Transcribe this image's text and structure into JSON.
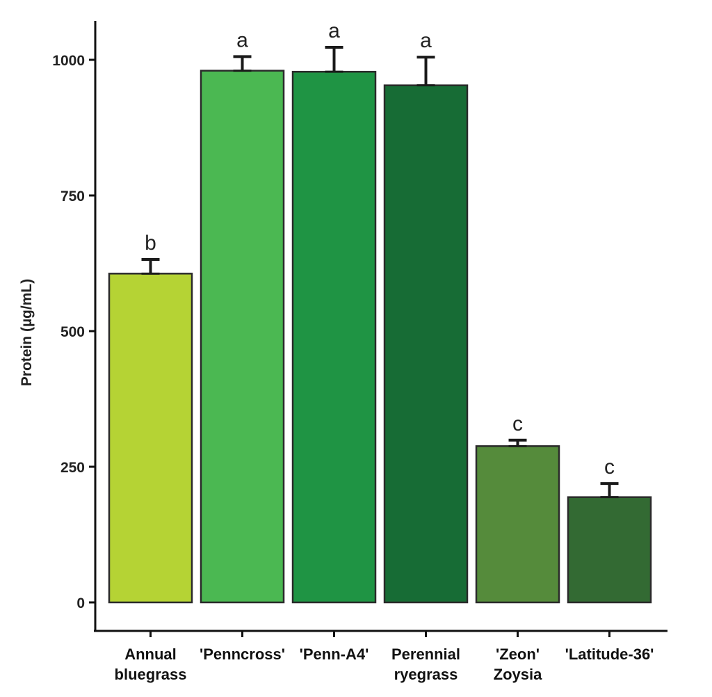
{
  "chart_data": {
    "type": "bar",
    "title": "",
    "xlabel": "",
    "ylabel": "Protein (µg/mL)",
    "ylim": [
      0,
      1070
    ],
    "yticks": [
      0,
      250,
      500,
      750,
      1000
    ],
    "grid": false,
    "legend": null,
    "categories": [
      [
        "Annual",
        "bluegrass"
      ],
      [
        "'Penncross'"
      ],
      [
        "'Penn-A4'"
      ],
      [
        "Perennial",
        "ryegrass"
      ],
      [
        "'Zeon'",
        "Zoysia"
      ],
      [
        "'Latitude-36'"
      ]
    ],
    "values": [
      606,
      980,
      978,
      953,
      288,
      194
    ],
    "error_upper": [
      632,
      1006,
      1023,
      1005,
      299,
      219
    ],
    "significance_letters": [
      "b",
      "a",
      "a",
      "a",
      "c",
      "c"
    ],
    "colors": [
      "#b5d334",
      "#4bb852",
      "#1f9444",
      "#176c35",
      "#558b3b",
      "#336a33"
    ]
  },
  "axis": {
    "y_title": "Protein (µg/mL)",
    "y_ticks": [
      "0",
      "250",
      "500",
      "750",
      "1000"
    ]
  }
}
